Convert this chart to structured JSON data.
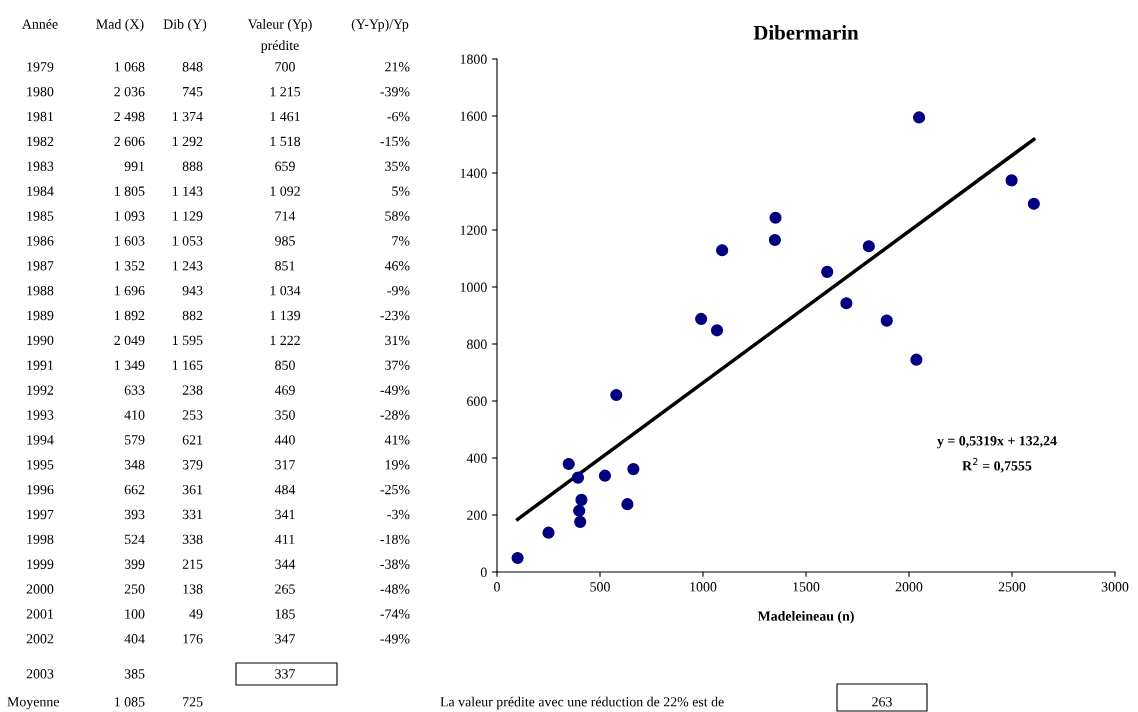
{
  "chart_data": {
    "type": "scatter",
    "title": "Dibermarin",
    "xlabel": "Madeleineau (n)",
    "series": [
      {
        "marker": "circle",
        "color": "#000080",
        "x": [
          1068,
          2036,
          2498,
          2606,
          991,
          1805,
          1093,
          1603,
          1352,
          1696,
          1892,
          2049,
          1349,
          633,
          410,
          579,
          348,
          662,
          393,
          524,
          399,
          250,
          100,
          404
        ],
        "values": [
          848,
          745,
          1374,
          1292,
          888,
          1143,
          1129,
          1053,
          1243,
          943,
          882,
          1595,
          1165,
          238,
          253,
          621,
          379,
          361,
          331,
          338,
          215,
          138,
          49,
          176
        ]
      },
      {
        "type": "line",
        "marker": "none",
        "color": "#000000",
        "x": [
          100,
          2606
        ],
        "values": [
          185,
          1518
        ]
      }
    ],
    "xlim": [
      0,
      3000
    ],
    "xticks": [
      0,
      500,
      1000,
      1500,
      2000,
      2500,
      3000
    ],
    "ylim": [
      0,
      1800
    ],
    "yticks": [
      0,
      200,
      400,
      600,
      800,
      1000,
      1200,
      1400,
      1600,
      1800
    ],
    "grid": false,
    "legend": false,
    "annotations": [
      "Année",
      "Mad (X)",
      "Dib (Y)",
      "Valeur (Yp)\nprédite",
      "(Y-Yp)/Yp",
      "1979",
      "1 068",
      "848",
      "700",
      "21%",
      "1980",
      "2 036",
      "745",
      "1 215",
      "-39%",
      "1981",
      "2 498",
      "1 374",
      "1 461",
      "-6%",
      "1982",
      "2 606",
      "1 292",
      "1 518",
      "-15%",
      "1983",
      "991",
      "888",
      "659",
      "35%",
      "1984",
      "1 805",
      "1 143",
      "1 092",
      "5%",
      "1985",
      "1 093",
      "1 129",
      "714",
      "58%",
      "1986",
      "1 603",
      "1 053",
      "985",
      "7%",
      "1987",
      "1 352",
      "1 243",
      "851",
      "46%",
      "1988",
      "1 696",
      "943",
      "1 034",
      "-9%",
      "1989",
      "1 892",
      "882",
      "1 139",
      "-23%",
      "1990",
      "2 049",
      "1 595",
      "1 222",
      "31%",
      "1991",
      "1 349",
      "1 165",
      "850",
      "37%",
      "1992",
      "633",
      "238",
      "469",
      "-49%",
      "1993",
      "410",
      "253",
      "350",
      "-28%",
      "1994",
      "579",
      "621",
      "440",
      "41%",
      "1995",
      "348",
      "379",
      "317",
      "19%",
      "1996",
      "662",
      "361",
      "484",
      "-25%",
      "1997",
      "393",
      "331",
      "341",
      "-3%",
      "1998",
      "524",
      "338",
      "411",
      "-18%",
      "1999",
      "399",
      "215",
      "344",
      "-38%",
      "2000",
      "250",
      "138",
      "265",
      "-48%",
      "2001",
      "100",
      "49",
      "185",
      "-74%",
      "2002",
      "404",
      "176",
      "347",
      "-49%",
      "2003",
      "385",
      "337",
      "Moyenne",
      "1 085",
      "725",
      "La valeur prédite avec une réduction de 22% est de",
      "263",
      "y = 0,5319x + 132,24",
      "R$^{2}$ = 0,7555"
    ]
  }
}
